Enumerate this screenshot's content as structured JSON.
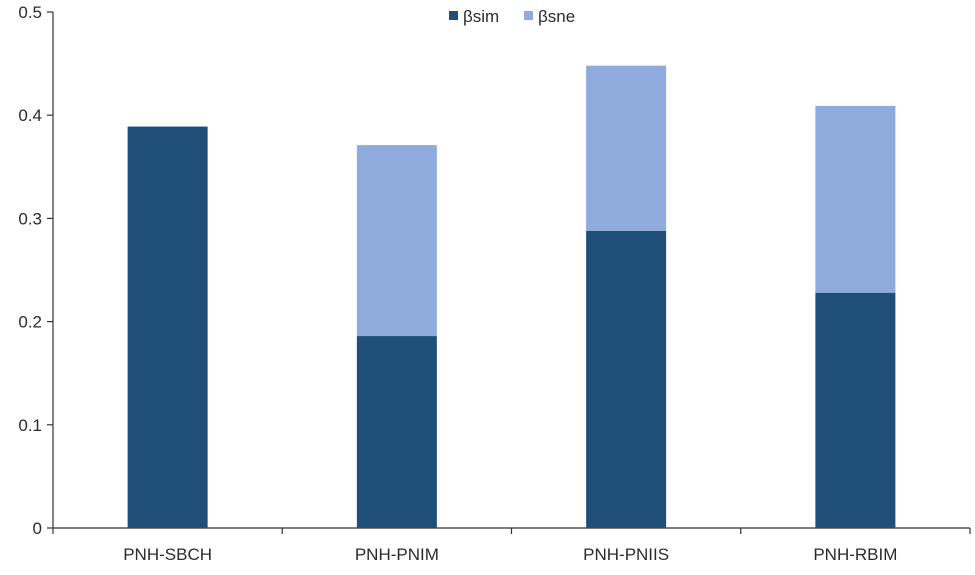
{
  "chart_data": {
    "type": "bar",
    "stacked": true,
    "title": "",
    "xlabel": "",
    "ylabel": "",
    "categories": [
      "PNH-SBCH",
      "PNH-PNIM",
      "PNH-PNIIS",
      "PNH-RBIM"
    ],
    "series": [
      {
        "name": "βsim",
        "color": "#1f4e79",
        "values": [
          0.389,
          0.186,
          0.288,
          0.228
        ]
      },
      {
        "name": "βsne",
        "color": "#8faadc",
        "values": [
          0.0,
          0.185,
          0.16,
          0.181
        ]
      }
    ],
    "ylim": [
      0,
      0.5
    ],
    "yticks": [
      "0",
      "0.1",
      "0.2",
      "0.3",
      "0.4",
      "0.5"
    ],
    "ytick_values": [
      0,
      0.1,
      0.2,
      0.3,
      0.4,
      0.5
    ],
    "legend_position": "top-center",
    "grid": false
  }
}
